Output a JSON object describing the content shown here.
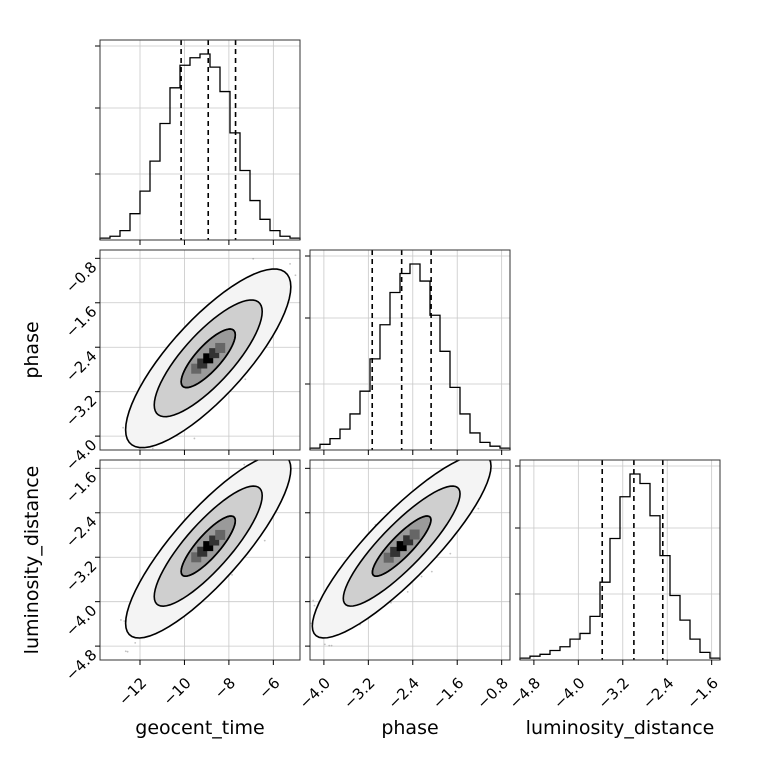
{
  "chart_data": {
    "type": "corner",
    "parameters": [
      "geocent_time",
      "phase",
      "luminosity_distance"
    ],
    "axis_labels": {
      "geocent_time": "geocent_time",
      "phase": "phase",
      "luminosity_distance": "luminosity_distance"
    },
    "ranges": {
      "geocent_time": [
        -13.8,
        -4.8
      ],
      "phase": [
        -4.25,
        -0.65
      ],
      "luminosity_distance": [
        -5.05,
        -1.45
      ]
    },
    "ticks": {
      "geocent_time": [
        -12,
        -10,
        -8,
        -6
      ],
      "phase": [
        -4.0,
        -3.2,
        -2.4,
        -1.6,
        -0.8
      ],
      "luminosity_distance": [
        -4.8,
        -4.0,
        -3.2,
        -2.4,
        -1.6
      ]
    },
    "tick_labels": {
      "geocent_time": [
        "−12",
        "−10",
        "−8",
        "−6"
      ],
      "phase": [
        "−4.0",
        "−3.2",
        "−2.4",
        "−1.6",
        "−0.8"
      ],
      "luminosity_distance": [
        "−4.8",
        "−4.0",
        "−3.2",
        "−2.4",
        "−1.6"
      ]
    },
    "quantiles": {
      "geocent_time": [
        -10.15,
        -8.93,
        -7.7
      ],
      "phase": [
        -3.13,
        -2.6,
        -2.07
      ],
      "luminosity_distance": [
        -3.57,
        -3.0,
        -2.48
      ]
    },
    "histograms": {
      "geocent_time": {
        "bin_edges": [
          -13.8,
          -13.35,
          -12.9,
          -12.45,
          -12.0,
          -11.55,
          -11.1,
          -10.65,
          -10.2,
          -9.75,
          -9.3,
          -8.85,
          -8.4,
          -7.95,
          -7.5,
          -7.05,
          -6.6,
          -6.15,
          -5.7,
          -5.25,
          -4.8
        ],
        "counts": [
          0.01,
          0.02,
          0.05,
          0.14,
          0.26,
          0.42,
          0.62,
          0.81,
          0.93,
          0.97,
          0.99,
          0.92,
          0.79,
          0.57,
          0.37,
          0.21,
          0.11,
          0.05,
          0.02,
          0.01
        ]
      },
      "phase": {
        "bin_edges": [
          -4.25,
          -4.07,
          -3.89,
          -3.71,
          -3.53,
          -3.35,
          -3.17,
          -2.99,
          -2.81,
          -2.63,
          -2.45,
          -2.27,
          -2.09,
          -1.91,
          -1.73,
          -1.55,
          -1.37,
          -1.19,
          -1.01,
          -0.83,
          -0.65
        ],
        "counts": [
          0.01,
          0.03,
          0.06,
          0.11,
          0.19,
          0.31,
          0.48,
          0.66,
          0.83,
          0.93,
          0.98,
          0.89,
          0.71,
          0.52,
          0.33,
          0.19,
          0.09,
          0.04,
          0.02,
          0.01
        ]
      },
      "luminosity_distance": {
        "bin_edges": [
          -5.05,
          -4.87,
          -4.69,
          -4.51,
          -4.33,
          -4.15,
          -3.97,
          -3.79,
          -3.61,
          -3.43,
          -3.25,
          -3.07,
          -2.89,
          -2.71,
          -2.53,
          -2.35,
          -2.17,
          -1.99,
          -1.81,
          -1.63,
          -1.45
        ],
        "counts": [
          0.01,
          0.02,
          0.03,
          0.05,
          0.07,
          0.11,
          0.14,
          0.23,
          0.41,
          0.64,
          0.86,
          0.98,
          0.93,
          0.76,
          0.55,
          0.34,
          0.21,
          0.11,
          0.04,
          0.01
        ]
      }
    },
    "pairs": [
      {
        "x": "geocent_time",
        "y": "phase",
        "correlation": 0.8
      },
      {
        "x": "geocent_time",
        "y": "luminosity_distance",
        "correlation": 0.84
      },
      {
        "x": "phase",
        "y": "luminosity_distance",
        "correlation": 0.87
      }
    ],
    "density_levels": [
      0.39,
      0.86,
      0.99
    ],
    "grid": true,
    "legend": "none"
  }
}
